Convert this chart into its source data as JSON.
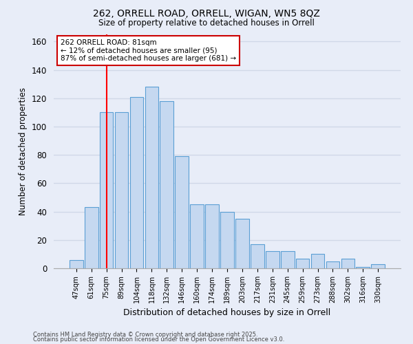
{
  "title1": "262, ORRELL ROAD, ORRELL, WIGAN, WN5 8QZ",
  "title2": "Size of property relative to detached houses in Orrell",
  "xlabel": "Distribution of detached houses by size in Orrell",
  "ylabel": "Number of detached properties",
  "categories": [
    "47sqm",
    "61sqm",
    "75sqm",
    "89sqm",
    "104sqm",
    "118sqm",
    "132sqm",
    "146sqm",
    "160sqm",
    "174sqm",
    "189sqm",
    "203sqm",
    "217sqm",
    "231sqm",
    "245sqm",
    "259sqm",
    "273sqm",
    "288sqm",
    "302sqm",
    "316sqm",
    "330sqm"
  ],
  "values": [
    6,
    43,
    110,
    110,
    121,
    128,
    118,
    79,
    45,
    45,
    40,
    35,
    17,
    12,
    12,
    7,
    10,
    5,
    7,
    1,
    3
  ],
  "bar_color": "#c5d8f0",
  "bar_edgecolor": "#5a9fd4",
  "red_line_x": 2.0,
  "annotation_line1": "262 ORRELL ROAD: 81sqm",
  "annotation_line2": "← 12% of detached houses are smaller (95)",
  "annotation_line3": "87% of semi-detached houses are larger (681) →",
  "annotation_box_facecolor": "#ffffff",
  "annotation_box_edgecolor": "#cc0000",
  "footer1": "Contains HM Land Registry data © Crown copyright and database right 2025.",
  "footer2": "Contains public sector information licensed under the Open Government Licence v3.0.",
  "ylim": [
    0,
    165
  ],
  "yticks": [
    0,
    20,
    40,
    60,
    80,
    100,
    120,
    140,
    160
  ],
  "background_color": "#e8edf8",
  "grid_color": "#d0d8e8"
}
